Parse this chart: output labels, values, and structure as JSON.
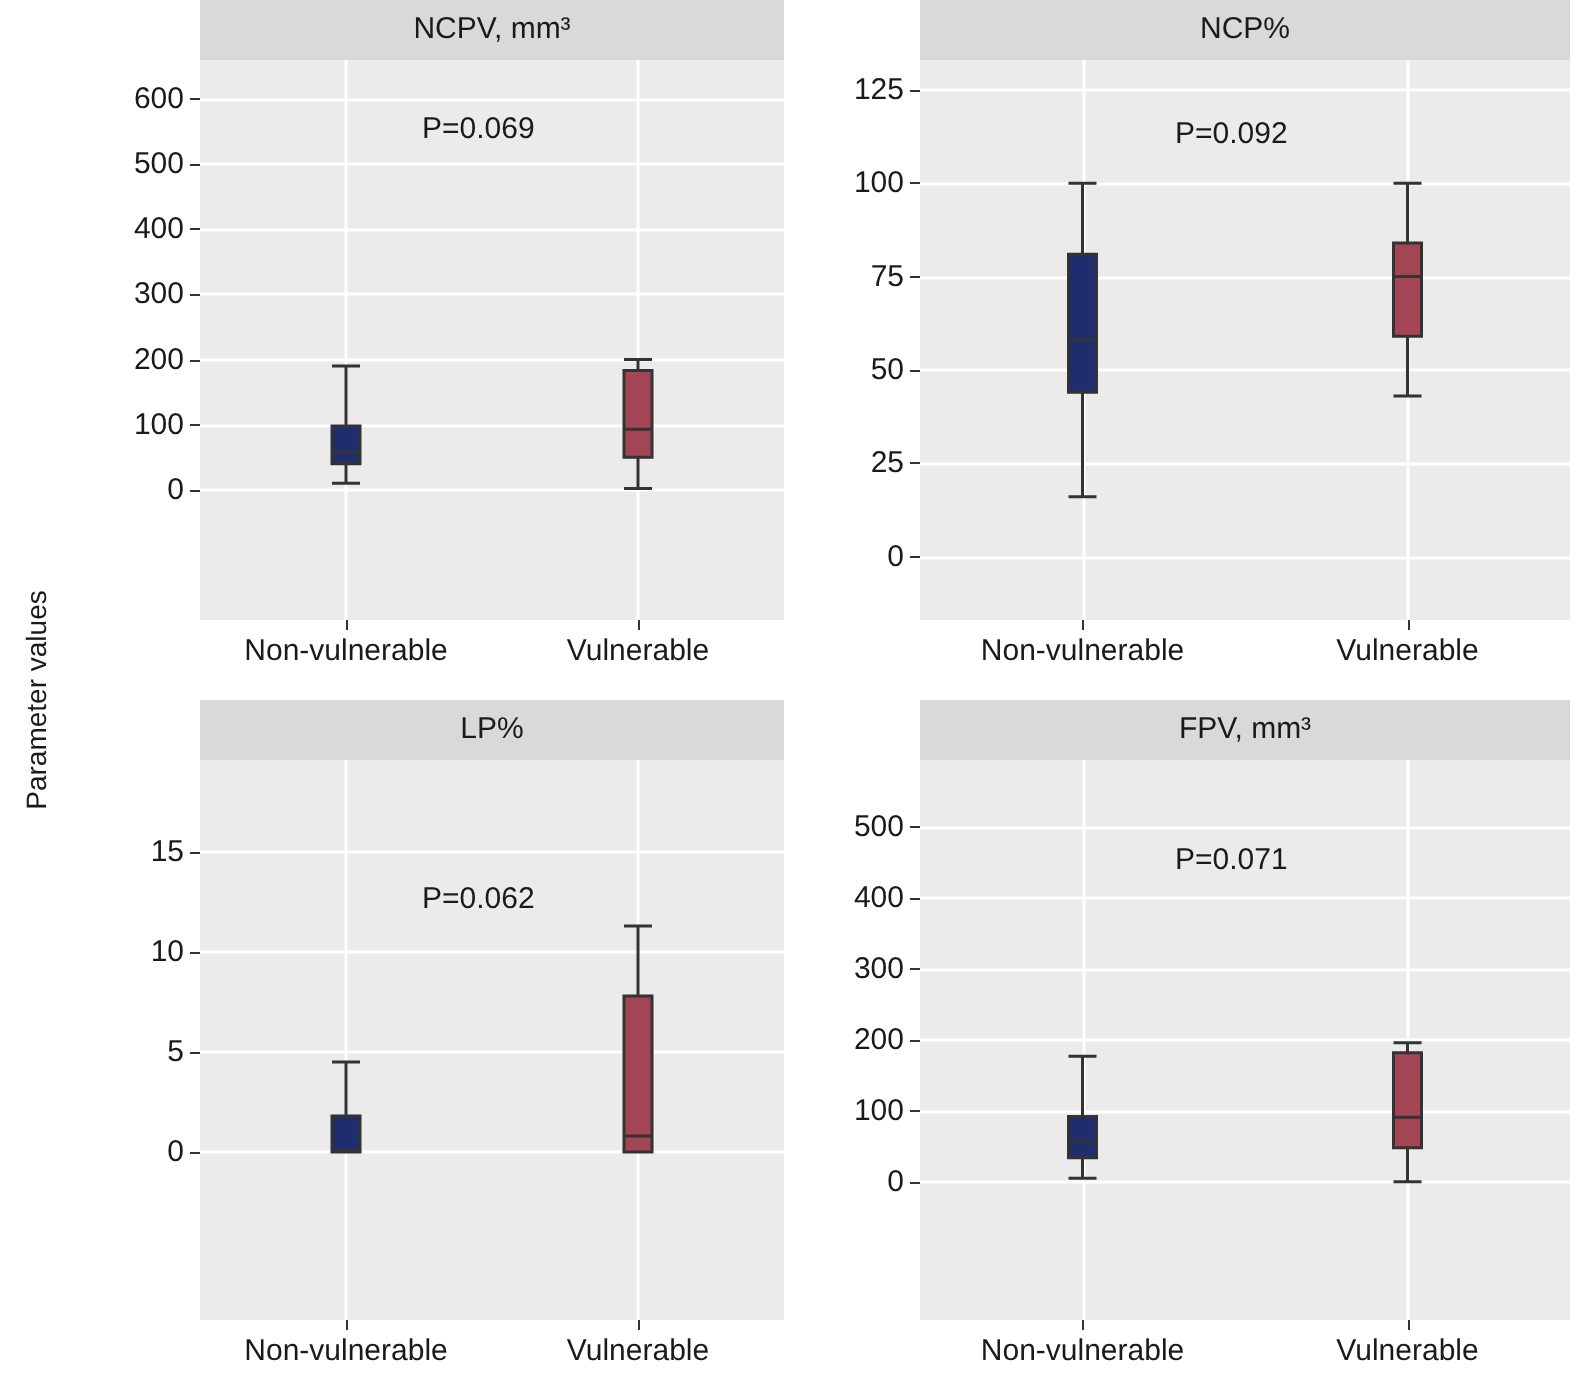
{
  "chart_data": [
    {
      "type": "box",
      "title": "NCPV, mm³",
      "ylabel": "Parameter values",
      "categories": [
        "Non-vulnerable",
        "Vulnerable"
      ],
      "colors": [
        "#1f2d6e",
        "#a34555"
      ],
      "boxes": [
        {
          "low": 10,
          "q1": 40,
          "median": 58,
          "q3": 98,
          "high": 190
        },
        {
          "low": 2,
          "q1": 50,
          "median": 93,
          "q3": 183,
          "high": 200
        }
      ],
      "ylim": [
        -200,
        660
      ],
      "yticks": [
        0,
        100,
        200,
        300,
        400,
        500,
        600
      ],
      "grid": true,
      "annotations": [
        "P=0.069"
      ]
    },
    {
      "type": "box",
      "title": "NCP%",
      "categories": [
        "Non-vulnerable",
        "Vulnerable"
      ],
      "colors": [
        "#1f2d6e",
        "#a34555"
      ],
      "boxes": [
        {
          "low": 16,
          "q1": 44,
          "median": 58,
          "q3": 81,
          "high": 100
        },
        {
          "low": 43,
          "q1": 59,
          "median": 75,
          "q3": 84,
          "high": 100
        }
      ],
      "ylim": [
        -17,
        133
      ],
      "yticks": [
        0,
        25,
        50,
        75,
        100,
        125
      ],
      "grid": true,
      "annotations": [
        "P=0.092"
      ]
    },
    {
      "type": "box",
      "title": "LP%",
      "categories": [
        "Non-vulnerable",
        "Vulnerable"
      ],
      "colors": [
        "#1f2d6e",
        "#a34555"
      ],
      "boxes": [
        {
          "low": 0,
          "q1": 0,
          "median": 0.1,
          "q3": 1.8,
          "high": 4.5
        },
        {
          "low": 0,
          "q1": 0,
          "median": 0.8,
          "q3": 7.8,
          "high": 11.3
        }
      ],
      "ylim": [
        -8.4,
        19.6
      ],
      "yticks": [
        0,
        5,
        10,
        15
      ],
      "grid": true,
      "annotations": [
        "P=0.062"
      ]
    },
    {
      "type": "box",
      "title": "FPV, mm³",
      "categories": [
        "Non-vulnerable",
        "Vulnerable"
      ],
      "colors": [
        "#1f2d6e",
        "#a34555"
      ],
      "boxes": [
        {
          "low": 5,
          "q1": 34,
          "median": 57,
          "q3": 92,
          "high": 177
        },
        {
          "low": 0,
          "q1": 48,
          "median": 91,
          "q3": 182,
          "high": 196
        }
      ],
      "ylim": [
        -195,
        595
      ],
      "yticks": [
        0,
        100,
        200,
        300,
        400,
        500
      ],
      "grid": true,
      "annotations": [
        "P=0.071"
      ]
    }
  ]
}
